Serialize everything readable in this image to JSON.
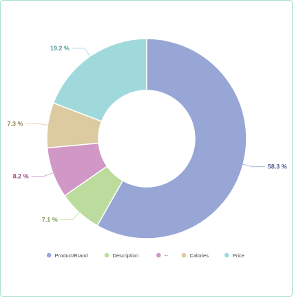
{
  "chart_data": {
    "type": "pie",
    "variant": "donut",
    "legend_position": "bottom",
    "slices": [
      {
        "name": "Product/Brand",
        "value": 58.3,
        "label": "58.3 %",
        "color": "#98a6d6",
        "label_color": "#5a6194"
      },
      {
        "name": "Description",
        "value": 7.1,
        "label": "7.1 %",
        "color": "#bcdc9e",
        "label_color": "#7a9a55"
      },
      {
        "name": "--",
        "value": 8.2,
        "label": "8.2 %",
        "color": "#d197c6",
        "label_color": "#a04c8f"
      },
      {
        "name": "Calories",
        "value": 7.3,
        "label": "7.3 %",
        "color": "#dccba0",
        "label_color": "#94814c"
      },
      {
        "name": "Price",
        "value": 19.2,
        "label": "19.2 %",
        "color": "#a0d9dc",
        "label_color": "#4f9c98"
      }
    ]
  }
}
